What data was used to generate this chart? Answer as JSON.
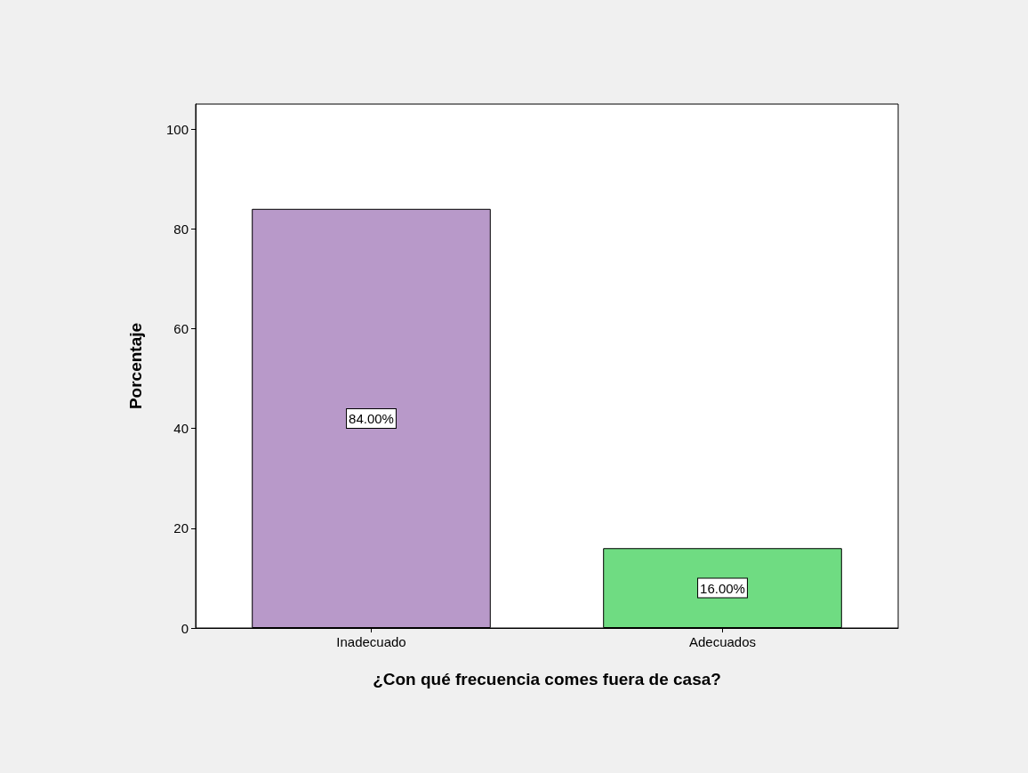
{
  "chart_data": {
    "type": "bar",
    "xlabel": "¿Con qué frecuencia comes fuera de casa?",
    "ylabel": "Porcentaje",
    "categories": [
      "Inadecuado",
      "Adecuados"
    ],
    "values": [
      84,
      16
    ],
    "colors": [
      "#b899c9",
      "#6fdc82"
    ],
    "value_labels": [
      "84.00%",
      "16.00%"
    ],
    "ylim": [
      0,
      105
    ],
    "yticks": [
      0,
      20,
      40,
      60,
      80,
      100
    ],
    "grid": false
  }
}
